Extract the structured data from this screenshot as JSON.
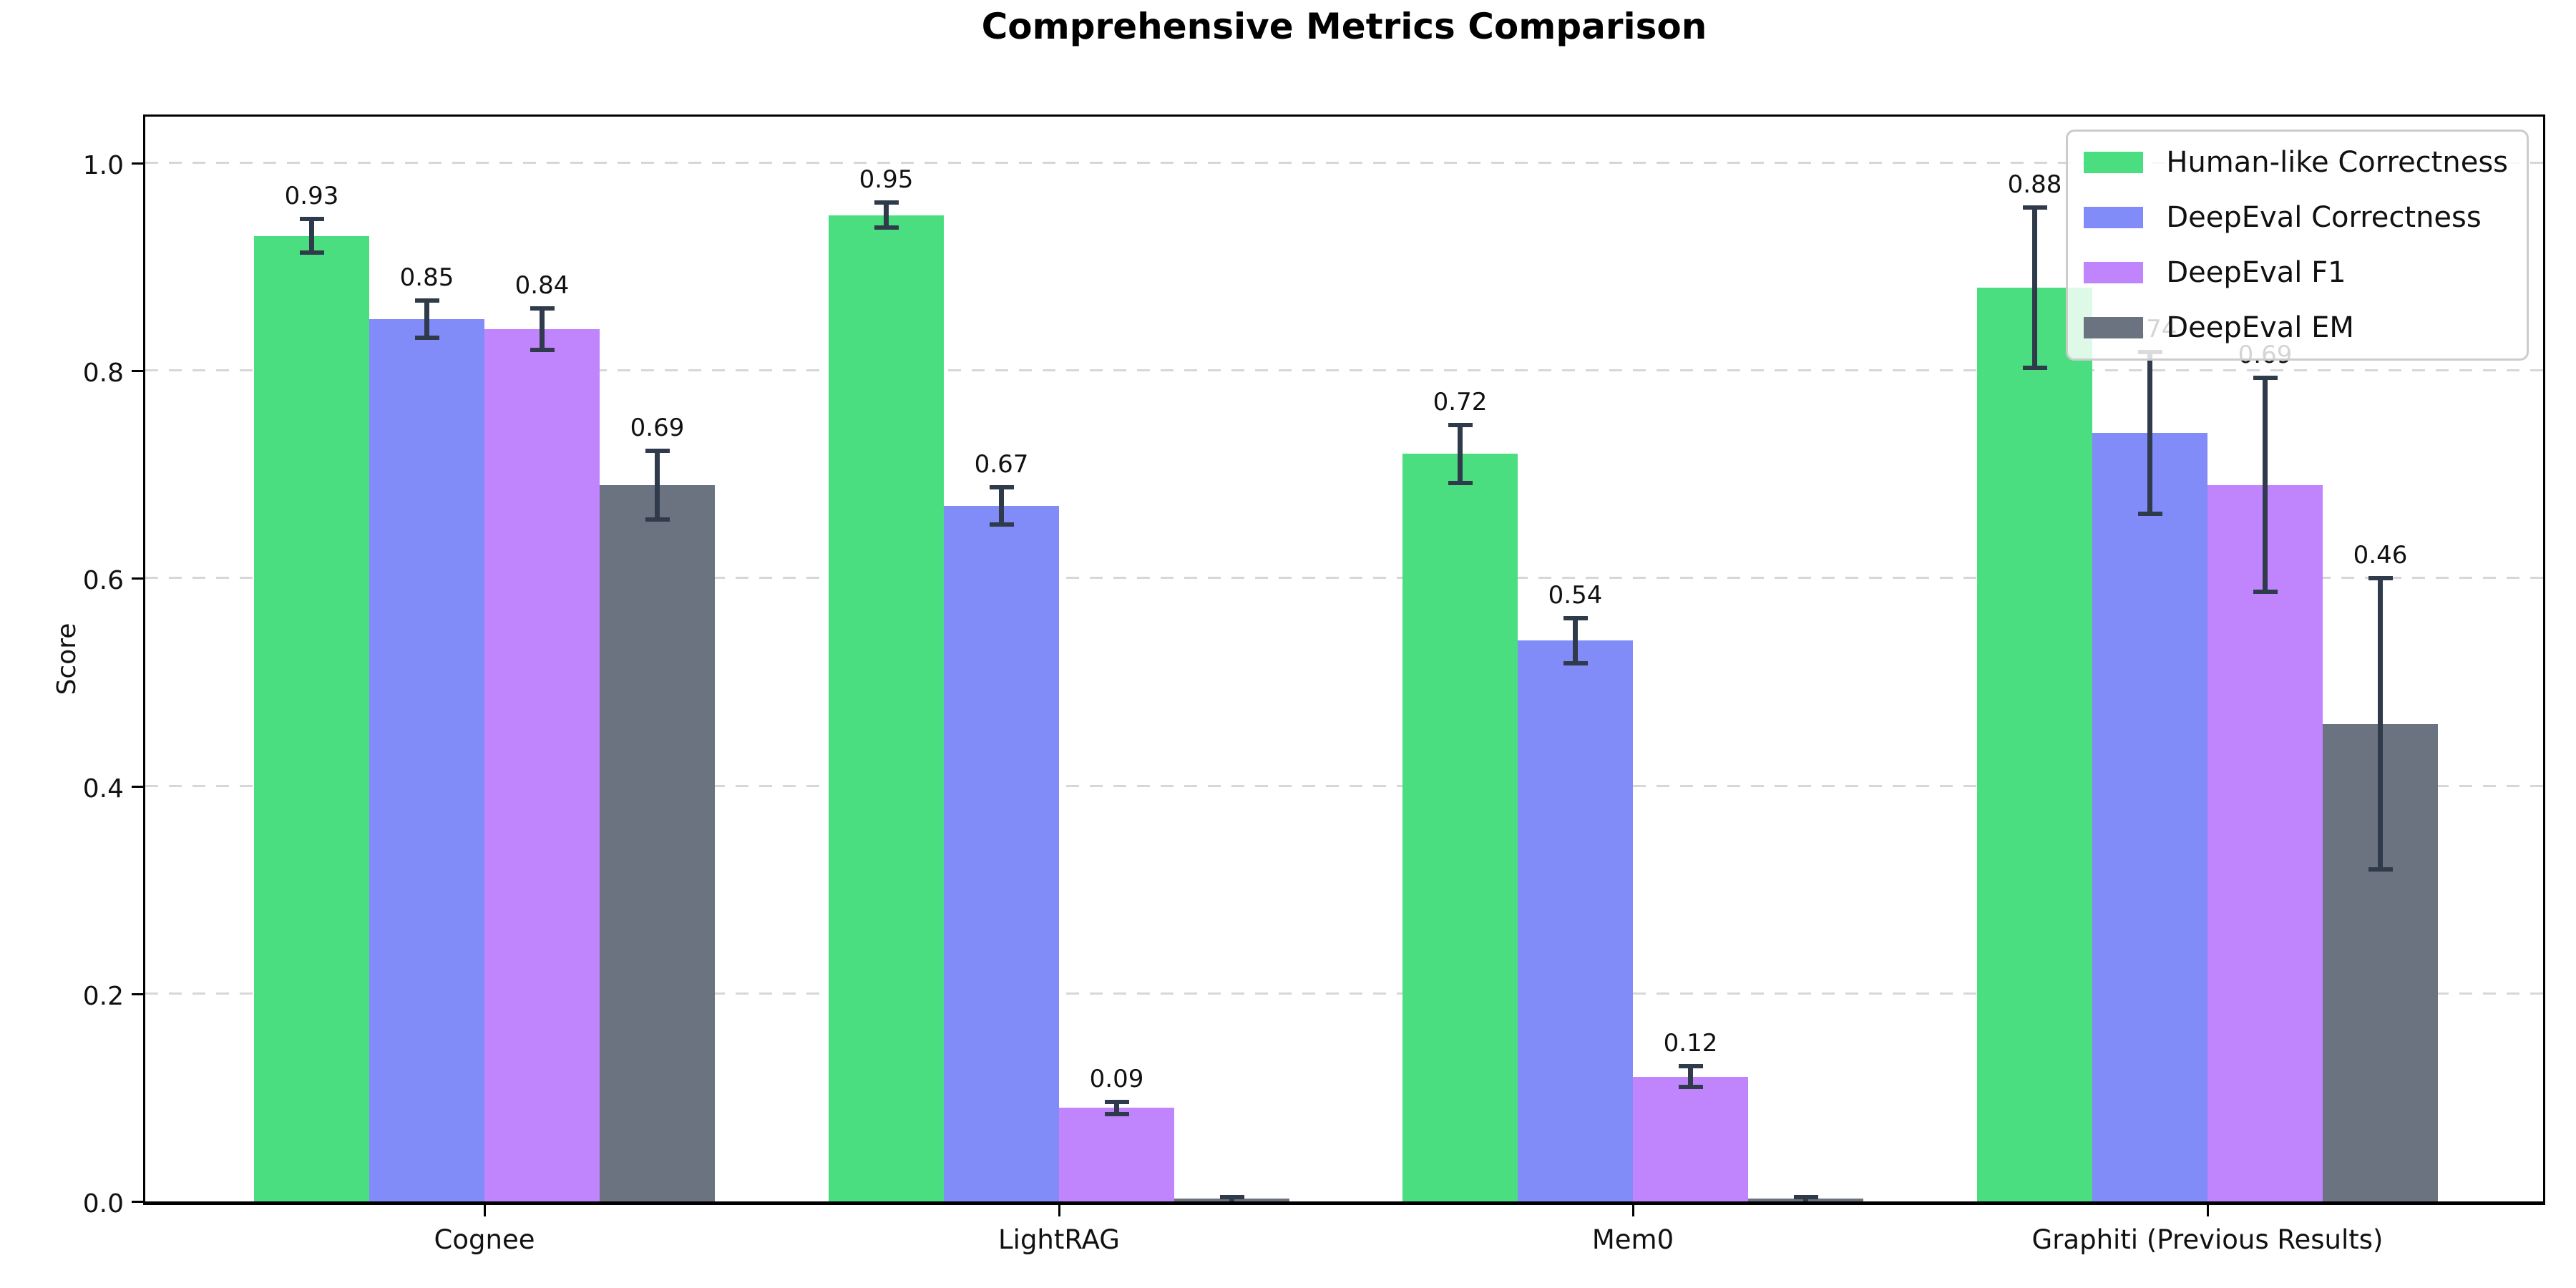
{
  "chart_data": {
    "type": "bar",
    "title": "Comprehensive Metrics Comparison",
    "xlabel": "",
    "ylabel": "Score",
    "ylim": [
      0,
      1.05
    ],
    "yticks": [
      "0.0",
      "0.2",
      "0.4",
      "0.6",
      "0.8",
      "1.0"
    ],
    "grid": "horizontal-dashed",
    "legend_position": "upper-right",
    "categories": [
      "Cognee",
      "LightRAG",
      "Mem0",
      "Graphiti (Previous Results)"
    ],
    "series": [
      {
        "name": "Human-like Correctness",
        "color": "#4ade80",
        "values": [
          0.93,
          0.95,
          0.72,
          0.88
        ],
        "errors": [
          0.016,
          0.012,
          0.028,
          0.077
        ],
        "labels": [
          "0.93",
          "0.95",
          "0.72",
          "0.88"
        ]
      },
      {
        "name": "DeepEval Correctness",
        "color": "#818cf8",
        "values": [
          0.85,
          0.67,
          0.54,
          0.74
        ],
        "errors": [
          0.018,
          0.018,
          0.022,
          0.078
        ],
        "labels": [
          "0.85",
          "0.67",
          "0.54",
          "0.74"
        ]
      },
      {
        "name": "DeepEval F1",
        "color": "#c084fc",
        "values": [
          0.84,
          0.09,
          0.12,
          0.69
        ],
        "errors": [
          0.02,
          0.006,
          0.01,
          0.103
        ],
        "labels": [
          "0.84",
          "0.09",
          "0.12",
          "0.69"
        ]
      },
      {
        "name": "DeepEval EM",
        "color": "#6b7280",
        "values": [
          0.69,
          0.0,
          0.0,
          0.46
        ],
        "errors": [
          0.033,
          0.004,
          0.004,
          0.14
        ],
        "labels": [
          "0.69",
          "",
          "",
          "0.46"
        ]
      }
    ],
    "style": {
      "error_bar_color": "#2f3a4a",
      "gridline_color": "#d7d7d7",
      "spine_color": "#000000"
    }
  }
}
